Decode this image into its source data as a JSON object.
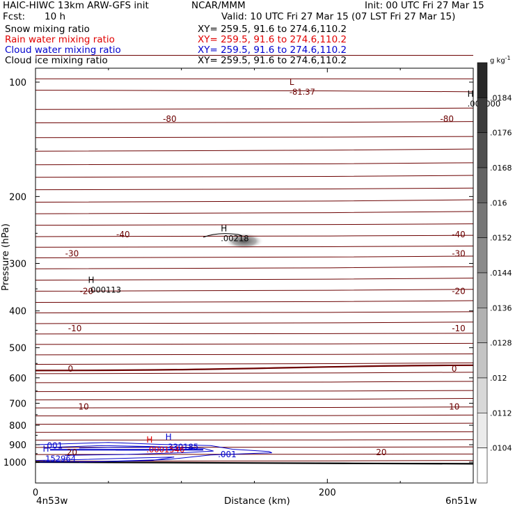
{
  "header": {
    "title": "HAIC-HIWC 13km ARW-GFS init",
    "org": "NCAR/MMM",
    "init": "Init: 00 UTC Fri 27 Mar 15",
    "fcst_label": "Fcst:",
    "fcst_value": "10 h",
    "valid": "Valid: 10 UTC Fri 27 Mar 15 (07 LST Fri 27 Mar 15)",
    "fields": [
      {
        "name": "Snow mixing ratio",
        "xy": "XY= 259.5, 91.6 to 274.6,110.2",
        "color": "#000000"
      },
      {
        "name": "Rain water mixing ratio",
        "xy": "XY= 259.5, 91.6 to 274.6,110.2",
        "color": "#e00000"
      },
      {
        "name": "Cloud water mixing ratio",
        "xy": "XY= 259.5, 91.6 to 274.6,110.2",
        "color": "#0000cc"
      },
      {
        "name": "Cloud ice mixing ratio",
        "xy": "XY= 259.5, 91.6 to 274.6,110.2",
        "color": "#000000"
      }
    ]
  },
  "chart_data": {
    "type": "contour",
    "xlabel": "Distance (km)",
    "ylabel": "Pressure (hPa)",
    "xlim": [
      0,
      300
    ],
    "ylim": [
      1050,
      60
    ],
    "y_log": true,
    "x_ticks": [
      0,
      200
    ],
    "y_ticks": [
      100,
      200,
      300,
      400,
      500,
      600,
      700,
      800,
      900,
      1000
    ],
    "endpoints": {
      "left": "4n53w",
      "right": "6n51w"
    },
    "temperature_color": "#6b0000",
    "temperature_contours": [
      {
        "level": "-80",
        "labels_at_x": [
          92,
          282
        ]
      },
      {
        "level": "-40",
        "labels_at_x": [
          60,
          290
        ]
      },
      {
        "level": "-30",
        "labels_at_x": [
          25,
          290
        ]
      },
      {
        "level": "-20",
        "labels_at_x": [
          35,
          290
        ]
      },
      {
        "level": "-10",
        "labels_at_x": [
          27,
          290
        ]
      },
      {
        "level": "0",
        "labels_at_x": [
          24,
          287
        ]
      },
      {
        "level": "10",
        "labels_at_x": [
          33,
          287
        ]
      },
      {
        "level": "20",
        "labels_at_x": [
          25,
          237
        ]
      }
    ],
    "extrema_labels": [
      {
        "type": "L",
        "value": "-81.37",
        "x": 174,
        "p": 107,
        "color": "#6b0000"
      },
      {
        "type": "H",
        "value": ".000000",
        "x": 296,
        "p": 115,
        "color": "#000000"
      },
      {
        "type": "H",
        "value": ".00218",
        "x": 127,
        "p": 260,
        "color": "#000000"
      },
      {
        "type": "H",
        "value": ".000113",
        "x": 36,
        "p": 355,
        "color": "#000000"
      },
      {
        "type": "H",
        "value": ".330185",
        "x": 89,
        "p": 920,
        "color": "#0000cc"
      },
      {
        "type": "H",
        "value": ".0001546",
        "x": 76,
        "p": 935,
        "color": "#e00000"
      },
      {
        "type": "H",
        "value": ".152964",
        "x": 5,
        "p": 988,
        "color": "#0000cc"
      }
    ],
    "cloud_water_labels": [
      {
        "value": ".001",
        "x": 6,
        "p": 922
      },
      {
        "value": ".001",
        "x": 125,
        "p": 970
      }
    ],
    "colorbar": {
      "unit": "g kg",
      "unit_exp": "-1",
      "labels": [
        ".0184",
        ".0176",
        ".0168",
        ".016",
        ".0152",
        ".0144",
        ".0136",
        ".0128",
        ".012",
        ".0112",
        ".0104"
      ]
    }
  }
}
